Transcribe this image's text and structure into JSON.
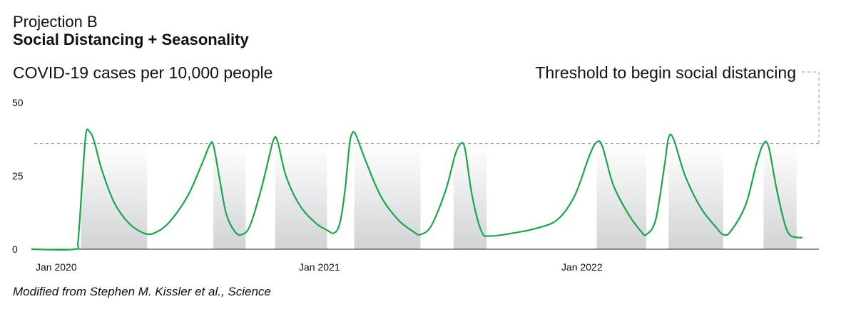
{
  "chart_data": {
    "type": "line",
    "title": "Projection B",
    "subtitle": "Social Distancing + Seasonality",
    "ylabel": "COVID-19 cases per 10,000 people",
    "yticks": [
      0,
      25,
      50
    ],
    "ylim": [
      0,
      50
    ],
    "xticks": [
      "Jan 2020",
      "Jan 2021",
      "Jan 2022"
    ],
    "xlim": [
      "2020-01-01",
      "2022-12-31"
    ],
    "threshold": {
      "label": "Threshold to begin social distancing",
      "value": 36
    },
    "caption": "Modified from Stephen M. Kissler et al., Science",
    "colors": {
      "line": "#1aa64a",
      "shading": "#d6d7da",
      "threshold": "#999999",
      "axis": "#222222"
    },
    "distancing_periods": [
      [
        "2020-03-10",
        "2020-06-10"
      ],
      [
        "2020-09-10",
        "2020-10-25"
      ],
      [
        "2020-12-05",
        "2021-02-15"
      ],
      [
        "2021-03-25",
        "2021-06-25"
      ],
      [
        "2021-08-10",
        "2021-09-25"
      ],
      [
        "2022-02-25",
        "2022-05-05"
      ],
      [
        "2022-06-05",
        "2022-08-20"
      ],
      [
        "2022-10-15",
        "2022-11-30"
      ]
    ],
    "series": [
      {
        "points": [
          [
            "2020-01-01",
            0
          ],
          [
            "2020-03-01",
            0
          ],
          [
            "2020-03-06",
            3
          ],
          [
            "2020-03-12",
            24
          ],
          [
            "2020-03-17",
            39.5
          ],
          [
            "2020-03-22",
            40
          ],
          [
            "2020-03-28",
            37
          ],
          [
            "2020-04-08",
            27
          ],
          [
            "2020-04-25",
            16
          ],
          [
            "2020-05-15",
            9
          ],
          [
            "2020-06-05",
            5.5
          ],
          [
            "2020-06-20",
            5.5
          ],
          [
            "2020-07-10",
            9
          ],
          [
            "2020-08-05",
            18
          ],
          [
            "2020-08-25",
            29
          ],
          [
            "2020-09-05",
            35.5
          ],
          [
            "2020-09-10",
            35.5
          ],
          [
            "2020-09-18",
            25
          ],
          [
            "2020-09-28",
            12
          ],
          [
            "2020-10-10",
            6
          ],
          [
            "2020-10-20",
            5
          ],
          [
            "2020-10-31",
            8
          ],
          [
            "2020-11-15",
            20
          ],
          [
            "2020-11-27",
            32
          ],
          [
            "2020-12-03",
            37.5
          ],
          [
            "2020-12-08",
            37
          ],
          [
            "2020-12-20",
            25
          ],
          [
            "2021-01-08",
            15
          ],
          [
            "2021-01-30",
            9
          ],
          [
            "2021-02-15",
            6.5
          ],
          [
            "2021-02-25",
            5.5
          ],
          [
            "2021-03-05",
            9
          ],
          [
            "2021-03-12",
            20
          ],
          [
            "2021-03-18",
            35
          ],
          [
            "2021-03-22",
            39.5
          ],
          [
            "2021-03-27",
            39
          ],
          [
            "2021-04-10",
            30
          ],
          [
            "2021-05-01",
            18
          ],
          [
            "2021-05-25",
            10
          ],
          [
            "2021-06-15",
            6
          ],
          [
            "2021-06-25",
            5
          ],
          [
            "2021-07-10",
            8
          ],
          [
            "2021-07-30",
            20
          ],
          [
            "2021-08-12",
            32
          ],
          [
            "2021-08-20",
            36
          ],
          [
            "2021-08-26",
            34
          ],
          [
            "2021-09-05",
            18
          ],
          [
            "2021-09-18",
            6
          ],
          [
            "2021-09-30",
            4.5
          ],
          [
            "2021-11-01",
            5.5
          ],
          [
            "2021-12-01",
            7
          ],
          [
            "2022-01-01",
            10
          ],
          [
            "2022-01-25",
            18
          ],
          [
            "2022-02-15",
            32
          ],
          [
            "2022-02-25",
            36.5
          ],
          [
            "2022-03-05",
            35
          ],
          [
            "2022-03-20",
            22
          ],
          [
            "2022-04-10",
            12
          ],
          [
            "2022-04-28",
            6
          ],
          [
            "2022-05-05",
            5
          ],
          [
            "2022-05-18",
            10
          ],
          [
            "2022-05-30",
            28
          ],
          [
            "2022-06-05",
            38
          ],
          [
            "2022-06-12",
            37.5
          ],
          [
            "2022-06-28",
            25
          ],
          [
            "2022-07-20",
            14
          ],
          [
            "2022-08-10",
            7.5
          ],
          [
            "2022-08-20",
            5
          ],
          [
            "2022-08-30",
            6
          ],
          [
            "2022-09-20",
            15
          ],
          [
            "2022-10-05",
            29
          ],
          [
            "2022-10-15",
            36
          ],
          [
            "2022-10-22",
            35
          ],
          [
            "2022-11-01",
            22
          ],
          [
            "2022-11-12",
            10
          ],
          [
            "2022-11-20",
            5
          ],
          [
            "2022-12-01",
            4
          ],
          [
            "2022-12-08",
            4
          ]
        ]
      }
    ]
  }
}
